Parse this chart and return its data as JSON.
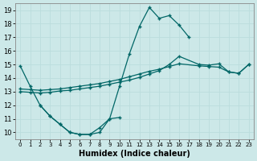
{
  "xlabel": "Humidex (Indice chaleur)",
  "bg_color": "#cce8e8",
  "grid_color": "#bbdddd",
  "line_color": "#006666",
  "xlim": [
    -0.5,
    23.5
  ],
  "ylim": [
    9.5,
    19.5
  ],
  "curve1_x": [
    0,
    1,
    2,
    3,
    4,
    5,
    6,
    7,
    8,
    9,
    10,
    11,
    12,
    13,
    14,
    15,
    16,
    17
  ],
  "curve1_y": [
    14.9,
    13.4,
    12.0,
    11.2,
    10.6,
    10.0,
    9.85,
    9.85,
    10.0,
    11.0,
    13.4,
    15.8,
    17.8,
    19.2,
    18.4,
    18.6,
    17.9,
    17.0
  ],
  "curve2_x": [
    2,
    3,
    4,
    5,
    6,
    7,
    8,
    9,
    10
  ],
  "curve2_y": [
    12.0,
    11.2,
    10.6,
    10.0,
    9.85,
    9.85,
    10.35,
    11.0,
    11.1
  ],
  "curve3_x": [
    0,
    1,
    2,
    3,
    4,
    5,
    6,
    7,
    8,
    9,
    10,
    11,
    12,
    13,
    14,
    15,
    16,
    18,
    19,
    20,
    21,
    22,
    23
  ],
  "curve3_y": [
    13.0,
    12.95,
    12.9,
    12.95,
    13.05,
    13.1,
    13.2,
    13.3,
    13.4,
    13.55,
    13.7,
    13.85,
    14.05,
    14.3,
    14.55,
    15.0,
    15.6,
    15.0,
    14.95,
    15.05,
    14.45,
    14.35,
    15.0
  ],
  "curve4_x": [
    0,
    1,
    2,
    3,
    4,
    5,
    6,
    7,
    8,
    9,
    10,
    11,
    12,
    13,
    14,
    15,
    16,
    18,
    19,
    20,
    21,
    22,
    23
  ],
  "curve4_y": [
    13.2,
    13.15,
    13.1,
    13.15,
    13.2,
    13.3,
    13.4,
    13.5,
    13.6,
    13.75,
    13.9,
    14.1,
    14.3,
    14.5,
    14.65,
    14.85,
    15.05,
    14.9,
    14.85,
    14.8,
    14.45,
    14.35,
    15.0
  ]
}
